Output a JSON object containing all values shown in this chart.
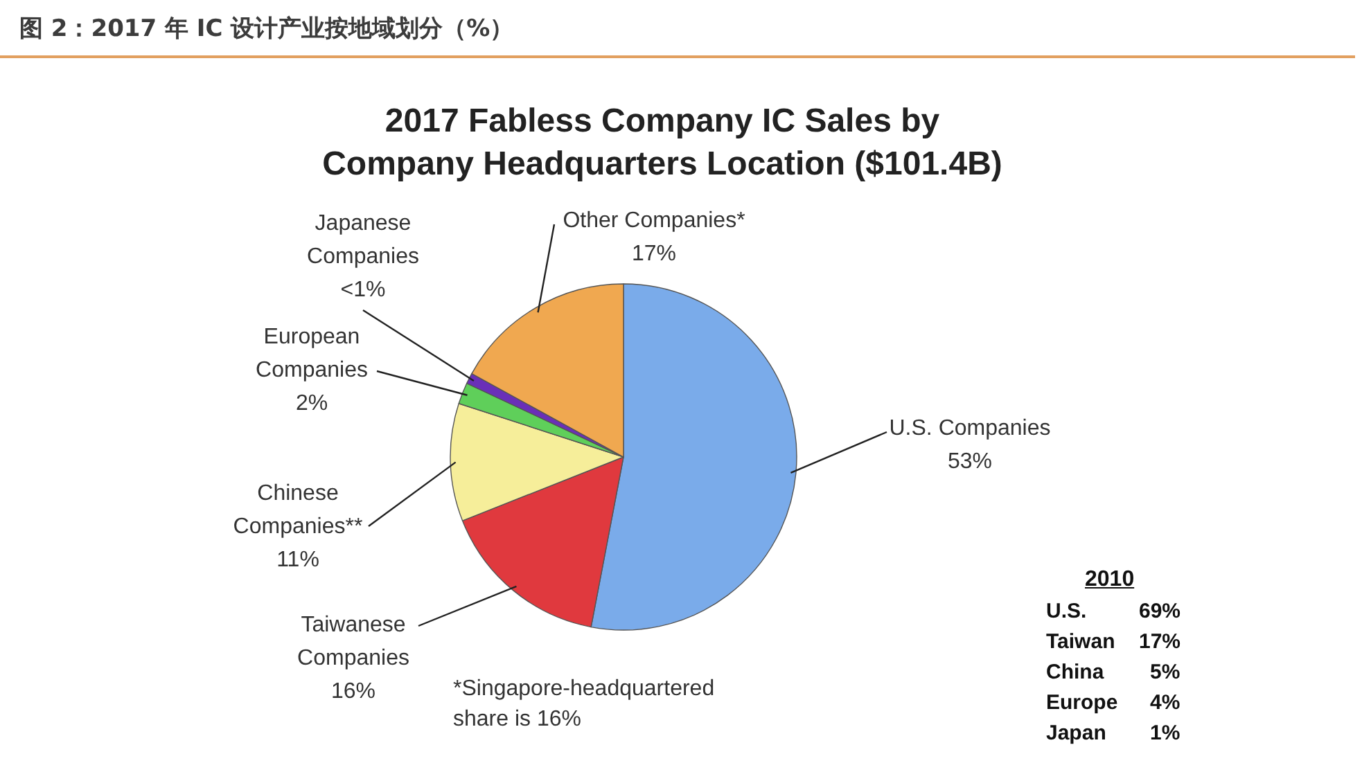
{
  "chart_data": {
    "type": "pie",
    "title": "图 2：2017 年 IC 设计产业按地域划分（%）",
    "subtitle": "2017 Fabless Company IC Sales by Company Headquarters Location ($101.4B)",
    "categories": [
      "U.S. Companies",
      "Taiwanese Companies",
      "Chinese Companies**",
      "European Companies",
      "Japanese Companies",
      "Other Companies*"
    ],
    "values": [
      53,
      16,
      11,
      2,
      1,
      17
    ],
    "value_labels": [
      "53%",
      "16%",
      "11%",
      "2%",
      "<1%",
      "17%"
    ],
    "colors": [
      "#7aabea",
      "#e0393e",
      "#f6ee9a",
      "#5fcf5a",
      "#6a2fb8",
      "#f0a850"
    ],
    "annotations": [
      "*Singapore-headquartered share is 16%",
      "2010",
      "U.S. 69%",
      "Taiwan 17%",
      "China 5%",
      "Europe 4%",
      "Japan 1%"
    ]
  }
}
